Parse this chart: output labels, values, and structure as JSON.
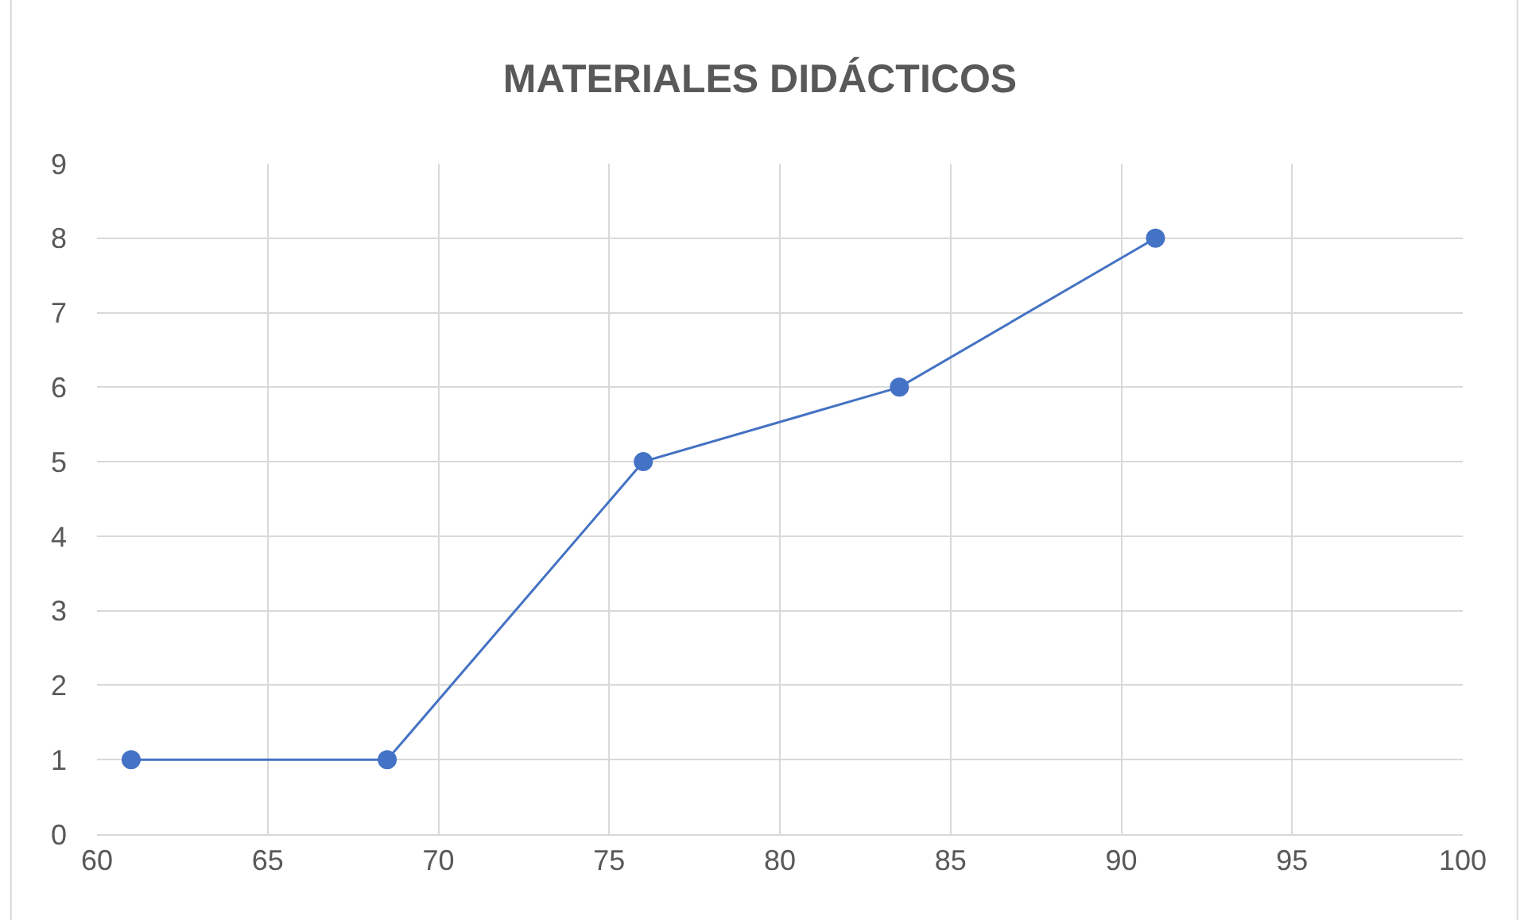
{
  "chart_data": {
    "type": "line",
    "title": "MATERIALES DIDÁCTICOS",
    "x": [
      61,
      68.5,
      76,
      83.5,
      91
    ],
    "series": [
      {
        "color": "#4472c4",
        "values": [
          1,
          1,
          5,
          6,
          8
        ]
      }
    ],
    "xlim": [
      60,
      100
    ],
    "xticks": [
      60,
      65,
      70,
      75,
      80,
      85,
      90,
      95,
      100
    ],
    "ylim": [
      0,
      9
    ],
    "yticks": [
      0,
      1,
      2,
      3,
      4,
      5,
      6,
      7,
      8,
      9
    ],
    "grid": true,
    "marker": "circle",
    "line_style": "solid"
  }
}
